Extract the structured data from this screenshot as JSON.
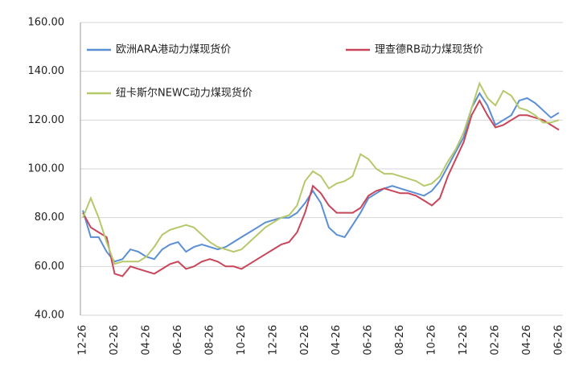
{
  "chart_data": {
    "type": "line",
    "categories": [
      "12-26",
      null,
      null,
      null,
      "02-26",
      null,
      null,
      null,
      "04-26",
      null,
      null,
      null,
      "06-26",
      null,
      null,
      null,
      "08-26",
      null,
      null,
      null,
      "10-26",
      null,
      null,
      null,
      "12-26",
      null,
      null,
      null,
      "02-26",
      null,
      null,
      null,
      "04-26",
      null,
      null,
      null,
      "06-26",
      null,
      null,
      null,
      "08-26",
      null,
      null,
      null,
      "10-26",
      null,
      null,
      null,
      "12-26",
      null,
      null,
      null,
      "02-26",
      null,
      null,
      null,
      "04-26",
      null,
      null,
      null,
      "06-26"
    ],
    "series": [
      {
        "name": "欧洲ARA港动力煤现货价",
        "color": "#5b8fd4",
        "values": [
          83,
          72,
          72,
          66,
          62,
          63,
          67,
          66,
          64,
          63,
          67,
          69,
          70,
          66,
          68,
          69,
          68,
          67,
          68,
          70,
          72,
          74,
          76,
          78,
          79,
          80,
          80,
          82,
          86,
          91,
          86,
          76,
          73,
          72,
          77,
          82,
          88,
          90,
          92,
          93,
          92,
          91,
          90,
          89,
          91,
          95,
          101,
          107,
          113,
          125,
          131,
          126,
          118,
          120,
          122,
          128,
          129,
          127,
          124,
          121,
          123
        ]
      },
      {
        "name": "理查德RB动力煤现货价",
        "color": "#c8455a",
        "values": [
          82,
          76,
          74,
          72,
          57,
          56,
          60,
          59,
          58,
          57,
          59,
          61,
          62,
          59,
          60,
          62,
          63,
          62,
          60,
          60,
          59,
          61,
          63,
          65,
          67,
          69,
          70,
          74,
          82,
          93,
          90,
          85,
          82,
          82,
          82,
          84,
          89,
          91,
          92,
          91,
          90,
          90,
          89,
          87,
          85,
          88,
          97,
          104,
          111,
          122,
          128,
          122,
          117,
          118,
          120,
          122,
          122,
          121,
          120,
          118,
          116
        ]
      },
      {
        "name": "纽卡斯尔NEWC动力煤现货价",
        "color": "#b5c96a",
        "values": [
          80,
          88,
          80,
          70,
          61,
          62,
          62,
          62,
          64,
          68,
          73,
          75,
          76,
          77,
          76,
          73,
          70,
          68,
          67,
          66,
          67,
          70,
          73,
          76,
          78,
          80,
          81,
          85,
          95,
          99,
          97,
          92,
          94,
          95,
          97,
          106,
          104,
          100,
          98,
          98,
          97,
          96,
          95,
          93,
          94,
          97,
          103,
          108,
          115,
          125,
          135,
          129,
          126,
          132,
          130,
          125,
          124,
          122,
          119,
          119,
          120
        ]
      }
    ],
    "ylim": [
      40,
      160
    ],
    "yticks": [
      {
        "value": 40,
        "label": "40.00"
      },
      {
        "value": 60,
        "label": "60.00"
      },
      {
        "value": 80,
        "label": "80.00"
      },
      {
        "value": 100,
        "label": "100.00"
      },
      {
        "value": 120,
        "label": "120.00"
      },
      {
        "value": 140,
        "label": "140.00"
      },
      {
        "value": 160,
        "label": "160.00"
      }
    ],
    "grid": true
  }
}
